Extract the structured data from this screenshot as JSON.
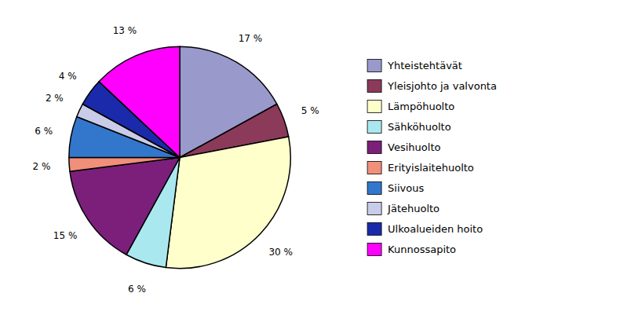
{
  "chart_data": {
    "type": "pie",
    "categories": [
      "Yhteistehtävät",
      "Yleisjohto ja valvonta",
      "Lämpöhuolto",
      "Sähköhuolto",
      "Vesihuolto",
      "Erityislaitehuolto",
      "Siivous",
      "Jätehuolto",
      "Ulkoalueiden hoito",
      "Kunnossapito"
    ],
    "values": [
      17,
      5,
      30,
      6,
      15,
      2,
      6,
      2,
      4,
      13
    ],
    "value_labels": [
      "17 %",
      "5 %",
      "30 %",
      "6 %",
      "15 %",
      "2 %",
      "6 %",
      "2 %",
      "4 %",
      "13 %"
    ],
    "colors": [
      "#9999cc",
      "#8b3a5a",
      "#ffffcc",
      "#aae8f0",
      "#7b1f7b",
      "#f0907a",
      "#3377cc",
      "#c8cce8",
      "#1a2aaa",
      "#ff00ff"
    ],
    "data_labels": true,
    "legend": "right"
  }
}
